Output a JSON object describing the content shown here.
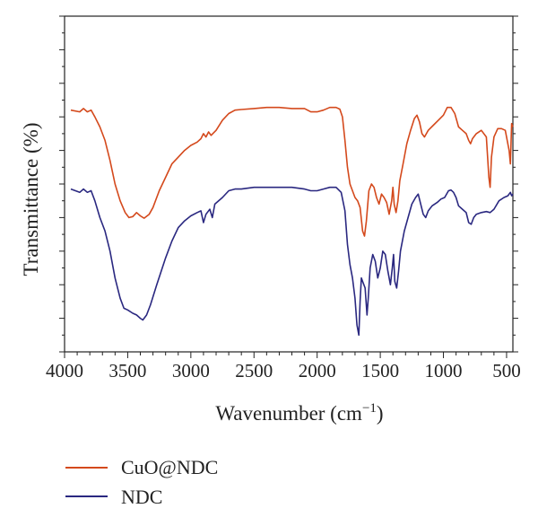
{
  "chart_data": {
    "type": "line",
    "xlabel": "Wavenumber (cm",
    "xlabel_sup": "−1",
    "xlabel_close": ")",
    "ylabel": "Transmittance (%)",
    "xlim": [
      4000,
      450
    ],
    "x_reversed": true,
    "xticks": [
      4000,
      3500,
      3000,
      2500,
      2000,
      1500,
      1000,
      500
    ],
    "xtick_labels": [
      "4000",
      "3500",
      "3000",
      "2500",
      "2000",
      "1500",
      "1000",
      "500"
    ],
    "ylim": [
      0,
      100
    ],
    "y_ticks_labeled": false,
    "grid": false,
    "legend_position": "bottom-left below plot",
    "series": [
      {
        "name": "CuO@NDC",
        "color": "#d4491c",
        "points": [
          [
            3950,
            72
          ],
          [
            3880,
            71.5
          ],
          [
            3850,
            72.5
          ],
          [
            3820,
            71.5
          ],
          [
            3790,
            72
          ],
          [
            3760,
            70
          ],
          [
            3720,
            67
          ],
          [
            3680,
            63
          ],
          [
            3640,
            57
          ],
          [
            3600,
            50
          ],
          [
            3560,
            45
          ],
          [
            3520,
            41.5
          ],
          [
            3490,
            40
          ],
          [
            3460,
            40.3
          ],
          [
            3430,
            41.5
          ],
          [
            3400,
            40.5
          ],
          [
            3370,
            39.8
          ],
          [
            3330,
            41
          ],
          [
            3300,
            43
          ],
          [
            3250,
            48
          ],
          [
            3200,
            52
          ],
          [
            3150,
            56
          ],
          [
            3100,
            58
          ],
          [
            3050,
            60
          ],
          [
            3000,
            61.5
          ],
          [
            2950,
            62.5
          ],
          [
            2920,
            63.5
          ],
          [
            2900,
            65
          ],
          [
            2880,
            64
          ],
          [
            2860,
            65.5
          ],
          [
            2840,
            64.5
          ],
          [
            2800,
            66
          ],
          [
            2750,
            69
          ],
          [
            2700,
            71
          ],
          [
            2650,
            72
          ],
          [
            2600,
            72.2
          ],
          [
            2500,
            72.5
          ],
          [
            2400,
            72.8
          ],
          [
            2300,
            72.8
          ],
          [
            2200,
            72.5
          ],
          [
            2100,
            72.5
          ],
          [
            2050,
            71.5
          ],
          [
            2000,
            71.5
          ],
          [
            1950,
            72
          ],
          [
            1900,
            72.8
          ],
          [
            1850,
            72.8
          ],
          [
            1820,
            72.3
          ],
          [
            1800,
            70
          ],
          [
            1780,
            63
          ],
          [
            1760,
            55
          ],
          [
            1740,
            50
          ],
          [
            1720,
            48
          ],
          [
            1700,
            46
          ],
          [
            1680,
            45
          ],
          [
            1660,
            43
          ],
          [
            1640,
            36
          ],
          [
            1625,
            34.5
          ],
          [
            1610,
            39
          ],
          [
            1590,
            48
          ],
          [
            1570,
            50
          ],
          [
            1550,
            49
          ],
          [
            1530,
            46
          ],
          [
            1510,
            44
          ],
          [
            1490,
            47
          ],
          [
            1470,
            46
          ],
          [
            1450,
            44.5
          ],
          [
            1430,
            41
          ],
          [
            1410,
            45
          ],
          [
            1400,
            49
          ],
          [
            1390,
            44
          ],
          [
            1375,
            41.5
          ],
          [
            1360,
            45
          ],
          [
            1345,
            51
          ],
          [
            1320,
            56
          ],
          [
            1290,
            62
          ],
          [
            1260,
            66
          ],
          [
            1230,
            69.5
          ],
          [
            1210,
            70.5
          ],
          [
            1190,
            68.5
          ],
          [
            1170,
            65
          ],
          [
            1150,
            64
          ],
          [
            1120,
            66
          ],
          [
            1080,
            67.5
          ],
          [
            1040,
            69
          ],
          [
            1000,
            70.5
          ],
          [
            970,
            72.8
          ],
          [
            940,
            72.8
          ],
          [
            910,
            71
          ],
          [
            880,
            67
          ],
          [
            850,
            66
          ],
          [
            820,
            65
          ],
          [
            800,
            63
          ],
          [
            785,
            62
          ],
          [
            770,
            63.5
          ],
          [
            740,
            65
          ],
          [
            700,
            66
          ],
          [
            660,
            64
          ],
          [
            640,
            52
          ],
          [
            630,
            49
          ],
          [
            620,
            58
          ],
          [
            600,
            64
          ],
          [
            570,
            66.5
          ],
          [
            540,
            66.5
          ],
          [
            510,
            66
          ],
          [
            480,
            60
          ],
          [
            470,
            56
          ],
          [
            460,
            68
          ],
          [
            450,
            67
          ]
        ]
      },
      {
        "name": "NDC",
        "color": "#2a2880",
        "points": [
          [
            3950,
            48.5
          ],
          [
            3880,
            47.5
          ],
          [
            3850,
            48.5
          ],
          [
            3820,
            47.5
          ],
          [
            3790,
            48
          ],
          [
            3760,
            45
          ],
          [
            3720,
            40
          ],
          [
            3680,
            36
          ],
          [
            3640,
            30
          ],
          [
            3600,
            22
          ],
          [
            3560,
            16
          ],
          [
            3530,
            13
          ],
          [
            3500,
            12.5
          ],
          [
            3460,
            11.5
          ],
          [
            3430,
            11
          ],
          [
            3400,
            10
          ],
          [
            3380,
            9.5
          ],
          [
            3350,
            11
          ],
          [
            3320,
            14
          ],
          [
            3270,
            20
          ],
          [
            3200,
            28
          ],
          [
            3150,
            33
          ],
          [
            3100,
            37
          ],
          [
            3050,
            39
          ],
          [
            3000,
            40.5
          ],
          [
            2950,
            41.5
          ],
          [
            2920,
            42
          ],
          [
            2900,
            38.5
          ],
          [
            2880,
            41
          ],
          [
            2850,
            42.5
          ],
          [
            2830,
            40
          ],
          [
            2810,
            44
          ],
          [
            2750,
            46
          ],
          [
            2700,
            48
          ],
          [
            2650,
            48.5
          ],
          [
            2600,
            48.5
          ],
          [
            2500,
            49
          ],
          [
            2400,
            49
          ],
          [
            2300,
            49
          ],
          [
            2200,
            49
          ],
          [
            2100,
            48.5
          ],
          [
            2050,
            48
          ],
          [
            2000,
            48
          ],
          [
            1950,
            48.5
          ],
          [
            1900,
            49
          ],
          [
            1850,
            49
          ],
          [
            1810,
            47.5
          ],
          [
            1780,
            42
          ],
          [
            1760,
            32
          ],
          [
            1740,
            26
          ],
          [
            1720,
            22
          ],
          [
            1700,
            16
          ],
          [
            1685,
            8
          ],
          [
            1670,
            5
          ],
          [
            1660,
            15
          ],
          [
            1650,
            22
          ],
          [
            1640,
            21
          ],
          [
            1620,
            19
          ],
          [
            1605,
            11
          ],
          [
            1595,
            16
          ],
          [
            1580,
            25
          ],
          [
            1560,
            29
          ],
          [
            1540,
            27
          ],
          [
            1520,
            22
          ],
          [
            1500,
            25
          ],
          [
            1480,
            30
          ],
          [
            1460,
            29
          ],
          [
            1440,
            24
          ],
          [
            1420,
            20
          ],
          [
            1405,
            25
          ],
          [
            1395,
            29
          ],
          [
            1385,
            21
          ],
          [
            1370,
            19
          ],
          [
            1355,
            24
          ],
          [
            1340,
            30
          ],
          [
            1310,
            36
          ],
          [
            1280,
            40
          ],
          [
            1250,
            44
          ],
          [
            1220,
            46
          ],
          [
            1200,
            47
          ],
          [
            1180,
            44
          ],
          [
            1160,
            41
          ],
          [
            1140,
            40
          ],
          [
            1120,
            42
          ],
          [
            1090,
            43.5
          ],
          [
            1050,
            44.5
          ],
          [
            1020,
            45.5
          ],
          [
            990,
            46
          ],
          [
            960,
            48
          ],
          [
            940,
            48.2
          ],
          [
            920,
            47.5
          ],
          [
            900,
            46
          ],
          [
            880,
            43.5
          ],
          [
            850,
            42.5
          ],
          [
            820,
            41.5
          ],
          [
            800,
            38.5
          ],
          [
            780,
            38
          ],
          [
            760,
            40
          ],
          [
            740,
            41
          ],
          [
            700,
            41.5
          ],
          [
            660,
            41.8
          ],
          [
            630,
            41.5
          ],
          [
            600,
            42.5
          ],
          [
            560,
            45
          ],
          [
            520,
            46
          ],
          [
            490,
            46.5
          ],
          [
            470,
            47.5
          ],
          [
            460,
            46.5
          ],
          [
            450,
            47
          ]
        ]
      }
    ]
  }
}
